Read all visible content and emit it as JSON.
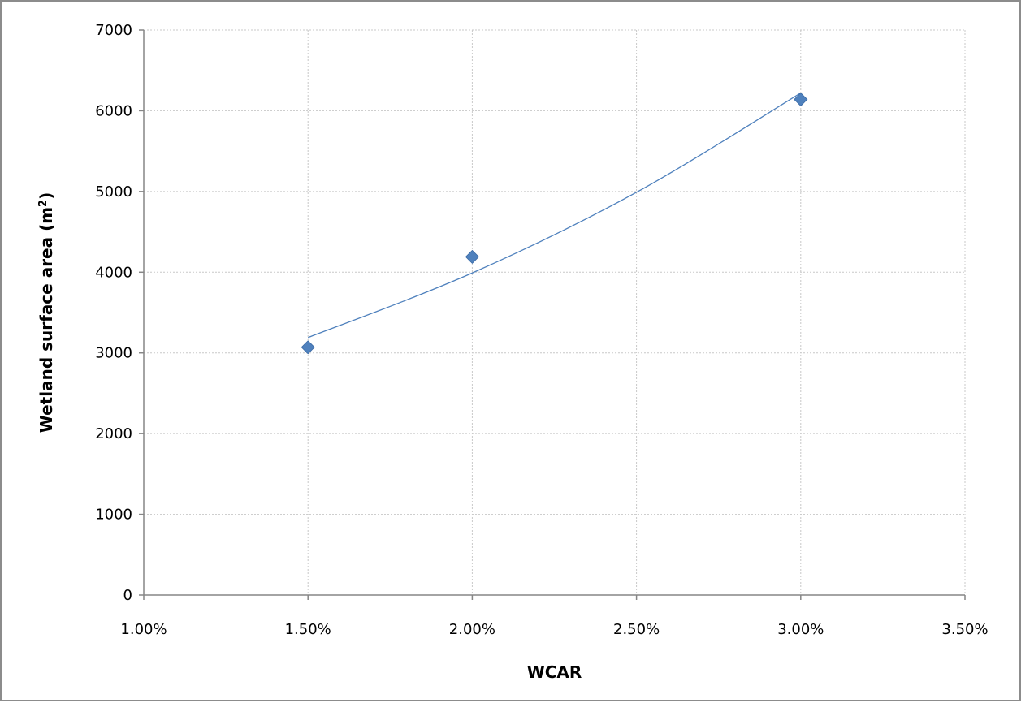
{
  "chart_data": {
    "type": "scatter",
    "title": "",
    "xlabel": "WCAR",
    "ylabel": {
      "prefix": "Wetland surface area (m",
      "superscript": "2",
      "suffix": ")"
    },
    "xlim": [
      0.01,
      0.035
    ],
    "ylim": [
      0,
      7000
    ],
    "x_ticks": [
      0.01,
      0.015,
      0.02,
      0.025,
      0.03,
      0.035
    ],
    "x_tick_labels": [
      "1.00%",
      "1.50%",
      "2.00%",
      "2.50%",
      "3.00%",
      "3.50%"
    ],
    "y_ticks": [
      0,
      1000,
      2000,
      3000,
      4000,
      5000,
      6000,
      7000
    ],
    "y_tick_labels": [
      "0",
      "1000",
      "2000",
      "3000",
      "4000",
      "5000",
      "6000",
      "7000"
    ],
    "grid": true,
    "legend": "none",
    "series": [
      {
        "x": [
          0.015,
          0.02,
          0.03
        ],
        "y": [
          3070,
          4190,
          6140
        ],
        "marker": "diamond",
        "color": "#4f81bd"
      }
    ],
    "trendline": {
      "type": "smooth",
      "color": "#4f81bd",
      "x": [
        0.015,
        0.02,
        0.025,
        0.03
      ],
      "y": [
        3190,
        3990,
        4990,
        6220
      ]
    },
    "colors": {
      "grid": "#c8c8c8",
      "axis": "#868686",
      "frame": "#8c8c8c"
    }
  }
}
